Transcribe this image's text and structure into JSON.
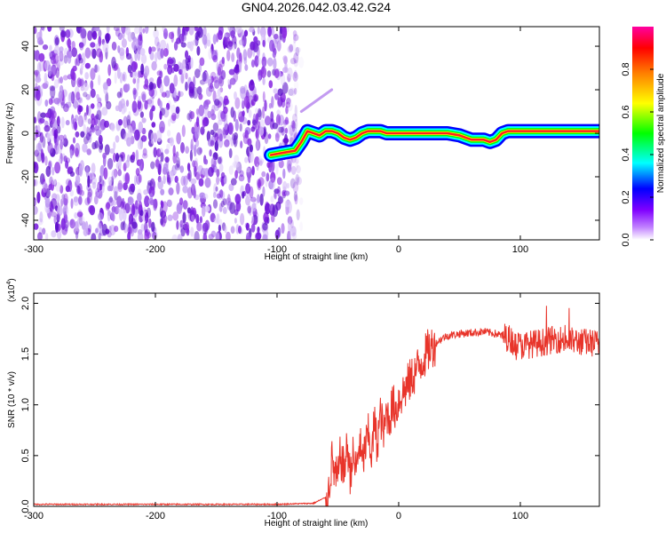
{
  "title": "GN04.2026.042.03.42.G24",
  "chart_data": [
    {
      "type": "heatmap",
      "name": "spectrogram",
      "xlabel": "Height of straight line (km)",
      "ylabel": "Frequency (Hz)",
      "xlim": [
        -300,
        165
      ],
      "ylim": [
        -49,
        49
      ],
      "xticks": [
        "-300",
        "-200",
        "-100",
        "0",
        "100"
      ],
      "yticks": [
        "-40",
        "-20",
        "0",
        "20",
        "40"
      ],
      "noise_region_x": [
        -300,
        -80
      ],
      "ridge": {
        "x": [
          -105,
          -95,
          -85,
          -80,
          -75,
          -70,
          -65,
          -60,
          -55,
          -50,
          -45,
          -40,
          -35,
          -30,
          -25,
          -20,
          -15,
          -10,
          -5,
          0,
          10,
          20,
          30,
          40,
          50,
          55,
          60,
          65,
          70,
          75,
          80,
          85,
          90,
          95,
          100,
          110,
          120,
          130,
          140,
          150,
          160,
          165
        ],
        "freq": [
          -10,
          -9,
          -8,
          -4,
          1,
          0,
          -1,
          1,
          1,
          0,
          -2,
          -3,
          -2,
          0,
          1,
          1,
          1,
          0,
          0,
          0,
          0,
          0,
          0,
          0,
          -1,
          -2,
          -3,
          -3,
          -3,
          -4,
          -3,
          0,
          1,
          1,
          1,
          1,
          1,
          1,
          1,
          1,
          1,
          1
        ]
      },
      "streak": {
        "x": [
          -80,
          -55
        ],
        "freq": [
          10,
          20
        ]
      },
      "colorbar": {
        "label": "Normalized spectral amplitude",
        "range": [
          0,
          1
        ],
        "ticks": [
          "0.0",
          "0.2",
          "0.4",
          "0.6",
          "0.8"
        ],
        "colors": [
          "#ffffff",
          "#a040ff",
          "#0000ff",
          "#00ffff",
          "#00ff00",
          "#ffff00",
          "#ff8000",
          "#ff0000",
          "#ff00a0"
        ]
      },
      "grid": false
    },
    {
      "type": "line",
      "name": "snr",
      "xlabel": "Height of straight line (km)",
      "ylabel": "SNR (10 * v/v)",
      "yscale_note": "(x10",
      "yscale_exp": "4",
      "xlim": [
        -300,
        165
      ],
      "ylim": [
        0,
        2.1
      ],
      "xticks": [
        "-300",
        "-200",
        "-100",
        "0",
        "100"
      ],
      "yticks": [
        "0.0",
        "0.5",
        "1.0",
        "1.5",
        "2.0"
      ],
      "color": "#e8342a",
      "series": [
        {
          "x": [
            -300,
            -200,
            -100,
            -70,
            -58,
            -55,
            -52,
            -50,
            -48,
            -45,
            -42,
            -40,
            -38,
            -35,
            -32,
            -30,
            -28,
            -25,
            -22,
            -20,
            -18,
            -15,
            -12,
            -10,
            -8,
            -5,
            -2,
            0,
            5,
            10,
            15,
            20,
            25,
            30,
            35,
            40,
            50,
            60,
            70,
            80,
            90,
            100,
            110,
            120,
            130,
            140,
            150,
            160,
            165
          ],
          "y": [
            0.02,
            0.02,
            0.02,
            0.03,
            0.1,
            0.45,
            0.3,
            0.25,
            0.5,
            0.35,
            0.6,
            0.3,
            0.5,
            0.35,
            0.65,
            0.4,
            0.55,
            0.7,
            0.5,
            0.85,
            0.6,
            0.9,
            0.7,
            0.95,
            0.85,
            1.0,
            0.95,
            1.05,
            1.15,
            1.25,
            1.35,
            1.45,
            1.55,
            1.6,
            1.65,
            1.68,
            1.7,
            1.71,
            1.72,
            1.7,
            1.66,
            1.58,
            1.6,
            1.62,
            1.65,
            1.63,
            1.62,
            1.61,
            1.6
          ]
        }
      ],
      "grid": false
    }
  ]
}
